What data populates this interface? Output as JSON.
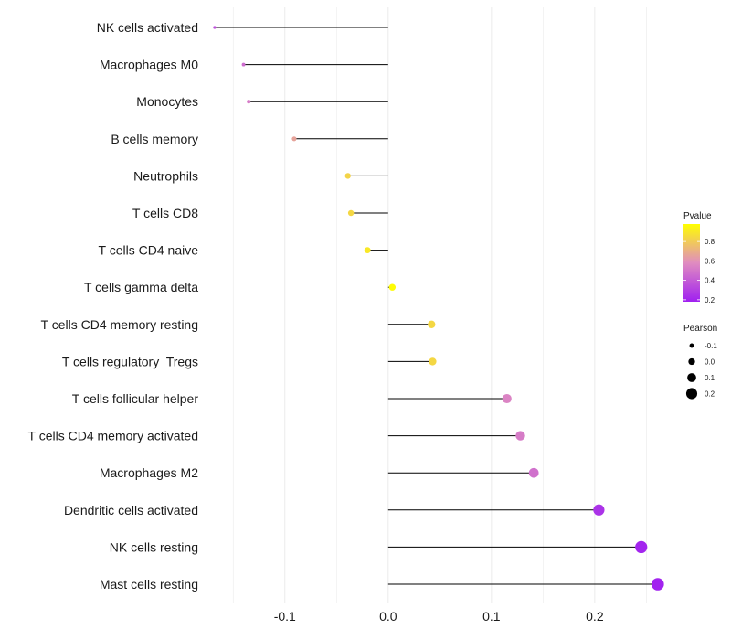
{
  "chart_data": {
    "type": "lollipop",
    "orientation": "horizontal",
    "title": "",
    "xlabel": "",
    "ylabel": "",
    "xlim": [
      -0.175,
      0.27
    ],
    "grid": true,
    "x_ticks": [
      -0.1,
      0.0,
      0.1,
      0.2
    ],
    "x_tick_labels": [
      "-0.1",
      "0.0",
      "0.1",
      "0.2"
    ],
    "baseline": 0.0,
    "categories": [
      "NK cells activated",
      "Macrophages M0",
      "Monocytes",
      "B cells memory",
      "Neutrophils",
      "T cells CD8",
      "T cells CD4 naive",
      "T cells gamma delta",
      "T cells CD4 memory resting",
      "T cells regulatory  Tregs",
      "T cells follicular helper",
      "T cells CD4 memory activated",
      "Macrophages M2",
      "Dendritic cells activated",
      "NK cells resting",
      "Mast cells resting"
    ],
    "values": [
      -0.168,
      -0.14,
      -0.135,
      -0.091,
      -0.039,
      -0.036,
      -0.02,
      0.004,
      0.042,
      0.043,
      0.115,
      0.128,
      0.141,
      0.204,
      0.245,
      0.261
    ],
    "pvalues": [
      0.36,
      0.46,
      0.52,
      0.66,
      0.83,
      0.84,
      0.9,
      0.97,
      0.84,
      0.84,
      0.55,
      0.52,
      0.48,
      0.25,
      0.2,
      0.19
    ],
    "color_legend": {
      "title": "Pvalue",
      "ticks": [
        0.8,
        0.6,
        0.4,
        0.2
      ],
      "tick_labels": [
        "0.8",
        "0.6",
        "0.4",
        "0.2"
      ],
      "range": [
        0.18,
        0.98
      ],
      "low_color": "#a020f0",
      "mid_color": "#e08cc0",
      "high_color": "#ffff00"
    },
    "size_legend": {
      "title": "Pearson",
      "values": [
        -0.1,
        0.0,
        0.1,
        0.2
      ],
      "labels": [
        "-0.1",
        "0.0",
        "0.1",
        "0.2"
      ]
    },
    "colors": {
      "segment": "#000000",
      "grid": "#ebebeb"
    }
  }
}
